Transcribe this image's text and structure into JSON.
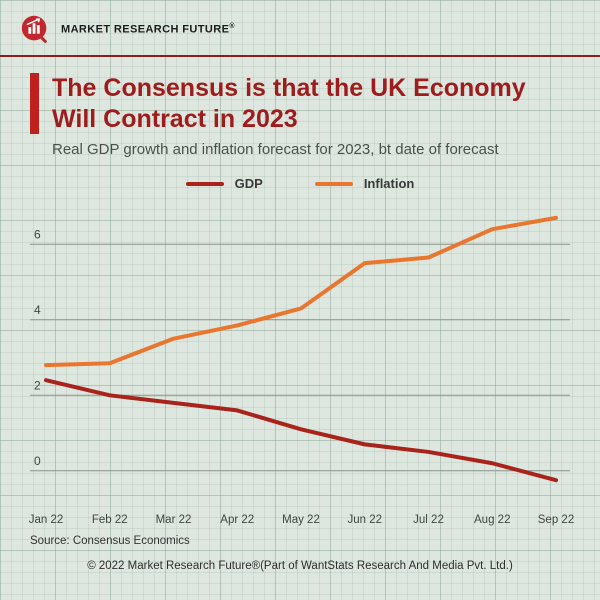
{
  "brand": {
    "name": "MARKET RESEARCH FUTURE",
    "registered": "®"
  },
  "header": {
    "title_line1": "The Consensus is that the UK Economy",
    "title_line2": "Will Contract in 2023",
    "subtitle": "Real GDP growth and inflation forecast for 2023, bt date of forecast"
  },
  "chart_data": {
    "type": "line",
    "title": "The Consensus is that the UK Economy Will Contract in 2023",
    "subtitle": "Real GDP growth and inflation forecast for 2023, bt date of forecast",
    "categories": [
      "Jan 22",
      "Feb 22",
      "Mar 22",
      "Apr 22",
      "May 22",
      "Jun 22",
      "Jul 22",
      "Aug 22",
      "Sep 22"
    ],
    "series": [
      {
        "name": "GDP",
        "color": "#a8231a",
        "values": [
          2.4,
          2.0,
          1.8,
          1.6,
          1.1,
          0.7,
          0.5,
          0.2,
          -0.25
        ]
      },
      {
        "name": "Inflation",
        "color": "#e8762e",
        "values": [
          2.8,
          2.85,
          3.5,
          3.85,
          4.3,
          5.5,
          5.65,
          6.4,
          6.7
        ]
      }
    ],
    "ylim": [
      -0.8,
      7.2
    ],
    "yticks": [
      0,
      2,
      4,
      6
    ],
    "grid": "horizontal",
    "legend_position": "top"
  },
  "footer": {
    "source": "Source: Consensus Economics",
    "copyright": "© 2022 Market Research Future®(Part of WantStats Research And Media Pvt. Ltd.)"
  },
  "colors": {
    "accent_red": "#c0211c",
    "title_maroon": "#9e1c1c",
    "rule_maroon": "#8e1d1d",
    "gdp_line": "#a8231a",
    "inflation_line": "#e8762e",
    "background": "#dee7df",
    "gridline_gray": "#8a948b"
  }
}
